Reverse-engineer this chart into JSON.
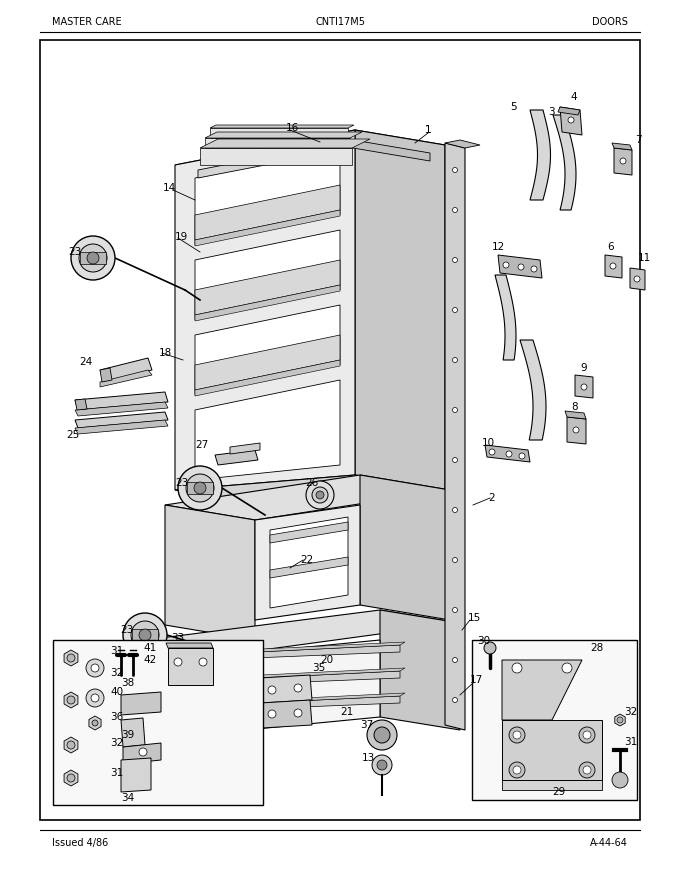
{
  "title_left": "MASTER CARE",
  "title_center": "CNTI17M5",
  "title_right": "DOORS",
  "footer_left": "Issued 4/86",
  "footer_right": "A-44-64",
  "bg_color": "#ffffff",
  "border_color": "#000000",
  "text_color": "#000000",
  "fig_width": 6.8,
  "fig_height": 8.9,
  "dpi": 100
}
